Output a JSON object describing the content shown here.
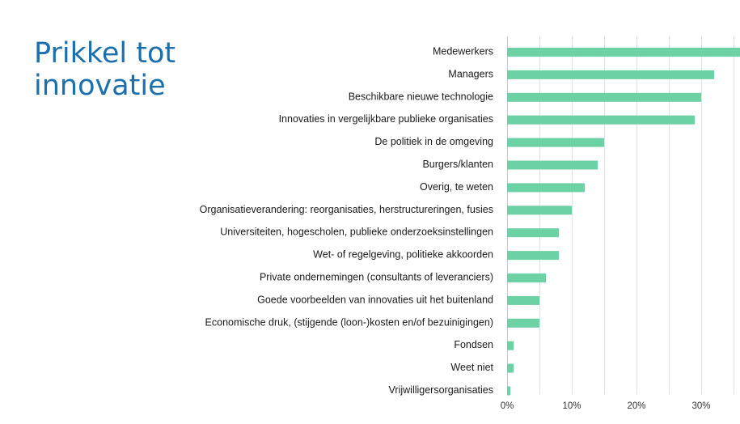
{
  "slide": {
    "title": "Prikkel tot innovatie"
  },
  "colors": {
    "bar": "#6dd1a6",
    "title": "#1b6fae"
  },
  "chart_data": {
    "type": "bar",
    "orientation": "horizontal",
    "title": "",
    "xlabel": "",
    "ylabel": "",
    "categories": [
      "Medewerkers",
      "Managers",
      "Beschikbare nieuwe technologie",
      "Innovaties in vergelijkbare publieke organisaties",
      "De politiek in de omgeving",
      "Burgers/klanten",
      "Overig, te weten",
      "Organisatieverandering: reorganisaties, herstructureringen, fusies",
      "Universiteiten, hogescholen, publieke onderzoeksinstellingen",
      "Wet- of regelgeving, politieke akkoorden",
      "Private ondernemingen (consultants of leveranciers)",
      "Goede voorbeelden van innovaties uit het buitenland",
      "Economische druk, (stijgende (loon-)kosten en/of bezuinigingen)",
      "Fondsen",
      "Weet niet",
      "Vrijwilligersorganisaties"
    ],
    "values": [
      36,
      32,
      30,
      29,
      15,
      14,
      12,
      10,
      8,
      8,
      6,
      5,
      5,
      1,
      1,
      0.5
    ],
    "unit": "%",
    "xlim": [
      0,
      36
    ],
    "xticks": [
      0,
      10,
      20,
      30
    ],
    "xtick_labels": [
      "0%",
      "10%",
      "20%",
      "30%"
    ],
    "grid": true,
    "legend": "none"
  }
}
